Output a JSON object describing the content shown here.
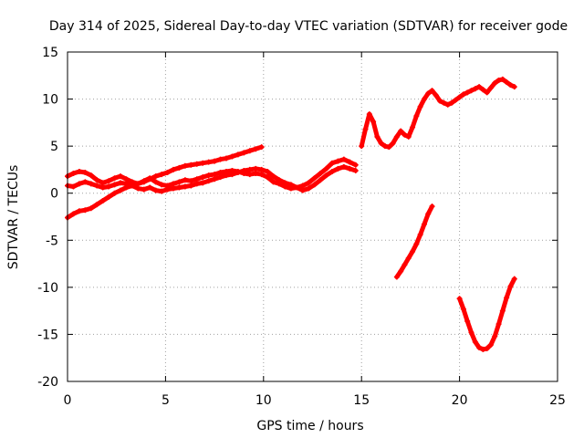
{
  "chart_data": {
    "type": "scatter",
    "title": "Day 314 of 2025, Sidereal Day-to-day VTEC variation (SDTVAR) for receiver gode",
    "xlabel": "GPS time / hours",
    "ylabel": "SDTVAR / TECUs",
    "xlim": [
      0,
      25
    ],
    "ylim": [
      -20,
      15
    ],
    "xticks": [
      0,
      5,
      10,
      15,
      20,
      25
    ],
    "yticks": [
      15,
      10,
      5,
      0,
      -5,
      -10,
      -15,
      -20
    ],
    "grid": true,
    "marker": "+",
    "color": "#ff0000",
    "series": [
      {
        "x": [
          0,
          0.3,
          0.6,
          0.9,
          1.2,
          1.5,
          1.8,
          2.1,
          2.4,
          2.7,
          3.0,
          3.3,
          3.6,
          3.9,
          4.2,
          4.5,
          4.8,
          5.1,
          5.4,
          5.7,
          6.0,
          6.3,
          6.6,
          6.9,
          7.2,
          7.5,
          7.8,
          8.1,
          8.4,
          8.7,
          9.0,
          9.3,
          9.6,
          9.9
        ],
        "y": [
          -2.6,
          -2.2,
          -1.9,
          -1.8,
          -1.6,
          -1.2,
          -0.8,
          -0.4,
          0.0,
          0.3,
          0.6,
          0.8,
          1.0,
          1.2,
          1.5,
          1.8,
          2.0,
          2.2,
          2.5,
          2.7,
          2.9,
          3.0,
          3.1,
          3.2,
          3.3,
          3.4,
          3.6,
          3.7,
          3.9,
          4.1,
          4.3,
          4.5,
          4.7,
          4.9
        ]
      },
      {
        "x": [
          0,
          0.3,
          0.6,
          0.9,
          1.2,
          1.5,
          1.8,
          2.1,
          2.4,
          2.7,
          3.0,
          3.3,
          3.6,
          3.9,
          4.2,
          4.5,
          4.8,
          5.1,
          5.4,
          5.7,
          6.0,
          6.3,
          6.6,
          6.9,
          7.2,
          7.5,
          7.8,
          8.1,
          8.4,
          8.7,
          9.0,
          9.3,
          9.6,
          9.9,
          10.2,
          10.5,
          10.8,
          11.1,
          11.4,
          11.7,
          12.0,
          12.3,
          12.6,
          12.9,
          13.2,
          13.5,
          13.8,
          14.1,
          14.4,
          14.7
        ],
        "y": [
          1.8,
          2.1,
          2.3,
          2.2,
          1.9,
          1.4,
          1.1,
          1.3,
          1.6,
          1.8,
          1.5,
          1.2,
          1.0,
          1.3,
          1.6,
          1.2,
          0.9,
          0.8,
          1.0,
          1.2,
          1.4,
          1.3,
          1.5,
          1.7,
          1.9,
          2.0,
          2.2,
          2.3,
          2.4,
          2.3,
          2.1,
          2.0,
          2.1,
          2.0,
          1.7,
          1.2,
          1.0,
          0.7,
          0.5,
          0.6,
          0.8,
          1.1,
          1.6,
          2.1,
          2.6,
          3.2,
          3.4,
          3.6,
          3.3,
          3.0
        ]
      },
      {
        "x": [
          0,
          0.3,
          0.6,
          0.9,
          1.2,
          1.5,
          1.8,
          2.1,
          2.4,
          2.7,
          3.0,
          3.3,
          3.6,
          3.9,
          4.2,
          4.5,
          4.8,
          5.1,
          5.4,
          5.7,
          6.0,
          6.3,
          6.6,
          6.9,
          7.2,
          7.5,
          7.8,
          8.1,
          8.4,
          8.7,
          9.0,
          9.3,
          9.6,
          9.9,
          10.2,
          10.5,
          10.8,
          11.1,
          11.4,
          11.7,
          12.0,
          12.3,
          12.6,
          12.9,
          13.2,
          13.5,
          13.8,
          14.1,
          14.4,
          14.7
        ],
        "y": [
          0.8,
          0.7,
          1.0,
          1.2,
          1.0,
          0.8,
          0.6,
          0.7,
          0.9,
          1.1,
          1.0,
          0.8,
          0.5,
          0.4,
          0.6,
          0.3,
          0.2,
          0.4,
          0.5,
          0.6,
          0.7,
          0.8,
          1.0,
          1.1,
          1.3,
          1.5,
          1.7,
          1.9,
          2.0,
          2.2,
          2.4,
          2.5,
          2.6,
          2.5,
          2.3,
          1.8,
          1.4,
          1.1,
          0.9,
          0.6,
          0.3,
          0.5,
          0.9,
          1.4,
          1.9,
          2.3,
          2.6,
          2.8,
          2.6,
          2.4
        ]
      },
      {
        "x": [
          15.0,
          15.2,
          15.4,
          15.6,
          15.8,
          16.0,
          16.2,
          16.4,
          16.6,
          16.8,
          17.0,
          17.2,
          17.4,
          17.6,
          17.8,
          18.0,
          18.2,
          18.4,
          18.6,
          18.8,
          19.0,
          19.2,
          19.4,
          19.6,
          19.8,
          20.0,
          20.2,
          20.4,
          20.6,
          20.8,
          21.0,
          21.2,
          21.4,
          21.6,
          21.8,
          22.0,
          22.2,
          22.4,
          22.6,
          22.8
        ],
        "y": [
          5.0,
          6.8,
          8.4,
          7.6,
          6.0,
          5.3,
          5.0,
          4.9,
          5.3,
          6.0,
          6.6,
          6.2,
          6.0,
          7.0,
          8.2,
          9.2,
          10.0,
          10.6,
          10.9,
          10.4,
          9.8,
          9.6,
          9.4,
          9.6,
          9.9,
          10.2,
          10.5,
          10.7,
          10.9,
          11.1,
          11.3,
          11.0,
          10.7,
          11.2,
          11.7,
          12.0,
          12.1,
          11.8,
          11.5,
          11.3
        ]
      },
      {
        "x": [
          16.8,
          17.0,
          17.2,
          17.4,
          17.6,
          17.8,
          18.0,
          18.2,
          18.4,
          18.6
        ],
        "y": [
          -8.9,
          -8.3,
          -7.6,
          -6.9,
          -6.2,
          -5.4,
          -4.4,
          -3.3,
          -2.2,
          -1.4
        ]
      },
      {
        "x": [
          20.0,
          20.2,
          20.4,
          20.6,
          20.8,
          21.0,
          21.2,
          21.4,
          21.6,
          21.8,
          22.0,
          22.2,
          22.4,
          22.6,
          22.8
        ],
        "y": [
          -11.2,
          -12.3,
          -13.6,
          -14.8,
          -15.8,
          -16.4,
          -16.6,
          -16.5,
          -16.1,
          -15.2,
          -13.9,
          -12.5,
          -11.1,
          -9.9,
          -9.1
        ]
      }
    ]
  }
}
